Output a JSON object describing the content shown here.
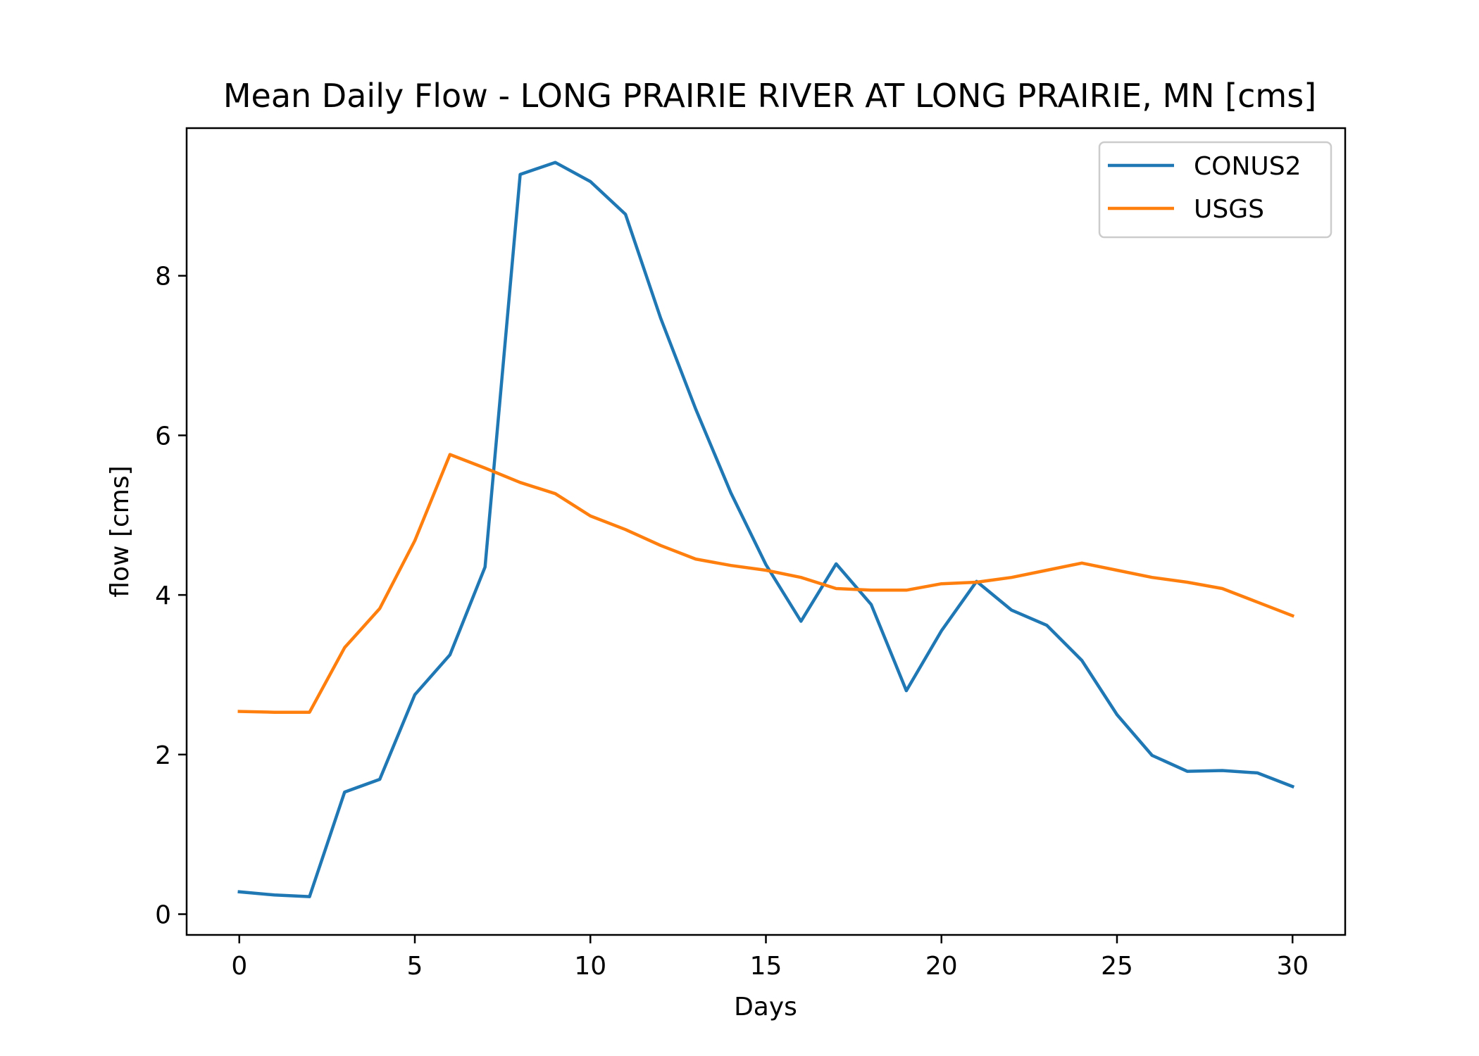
{
  "chart_data": {
    "type": "line",
    "title": "Mean Daily Flow - LONG PRAIRIE RIVER AT LONG PRAIRIE, MN [cms]",
    "xlabel": "Days",
    "ylabel": "flow [cms]",
    "xlim": [
      -1.5,
      31.5
    ],
    "ylim": [
      -0.26,
      9.85
    ],
    "x": [
      0,
      1,
      2,
      3,
      4,
      5,
      6,
      7,
      8,
      9,
      10,
      11,
      12,
      13,
      14,
      15,
      16,
      17,
      18,
      19,
      20,
      21,
      22,
      23,
      24,
      25,
      26,
      27,
      28,
      29,
      30
    ],
    "xticks": [
      0,
      5,
      10,
      15,
      20,
      25,
      30
    ],
    "yticks": [
      0,
      2,
      4,
      6,
      8
    ],
    "grid": false,
    "legend_position": "top-right",
    "series": [
      {
        "name": "CONUS2",
        "color": "#1f77b4",
        "values": [
          0.28,
          0.24,
          0.22,
          1.53,
          1.69,
          2.75,
          3.25,
          4.35,
          9.27,
          9.42,
          9.18,
          8.77,
          7.47,
          6.33,
          5.28,
          4.38,
          3.67,
          4.39,
          3.88,
          2.8,
          3.55,
          4.17,
          3.81,
          3.62,
          3.18,
          2.5,
          1.99,
          1.79,
          1.8,
          1.77,
          1.6
        ]
      },
      {
        "name": "USGS",
        "color": "#ff7f0e",
        "values": [
          2.54,
          2.53,
          2.53,
          3.34,
          3.83,
          4.68,
          5.76,
          5.59,
          5.41,
          5.27,
          4.99,
          4.82,
          4.62,
          4.45,
          4.37,
          4.31,
          4.22,
          4.08,
          4.06,
          4.06,
          4.14,
          4.16,
          4.22,
          4.31,
          4.4,
          4.31,
          4.22,
          4.16,
          4.08,
          3.91,
          3.74
        ]
      }
    ]
  }
}
